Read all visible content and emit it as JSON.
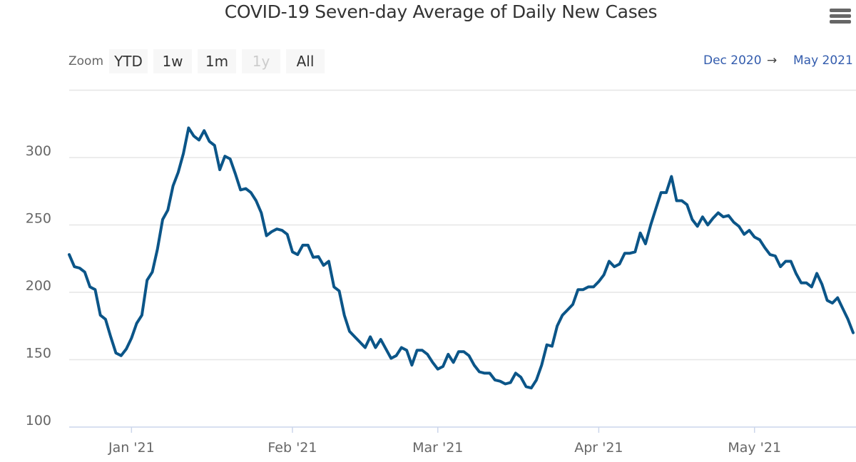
{
  "header": {
    "title": "COVID-19 Seven-day Average of Daily New Cases",
    "menu_icon": "hamburger-menu-icon"
  },
  "range_selector": {
    "zoom_label": "Zoom",
    "buttons": [
      {
        "label": "YTD",
        "enabled": true
      },
      {
        "label": "1w",
        "enabled": true
      },
      {
        "label": "1m",
        "enabled": true
      },
      {
        "label": "1y",
        "enabled": false
      },
      {
        "label": "All",
        "enabled": true
      }
    ],
    "from": "Dec 2020",
    "arrow": "→",
    "to": "May 2021"
  },
  "chart_data": {
    "type": "line",
    "title": "COVID-19 Seven-day Average of Daily New Cases",
    "xlabel": "",
    "ylabel": "",
    "x_start": "2020-12-20",
    "x_interval": "day",
    "xlim": [
      "2020-12-20",
      "2021-05-20"
    ],
    "ylim": [
      100,
      350
    ],
    "y_ticks": [
      100,
      150,
      200,
      250,
      300
    ],
    "x_ticks": [
      {
        "date": "2021-01-01",
        "label": "Jan '21"
      },
      {
        "date": "2021-02-01",
        "label": "Feb '21"
      },
      {
        "date": "2021-03-01",
        "label": "Mar '21"
      },
      {
        "date": "2021-04-01",
        "label": "Apr '21"
      },
      {
        "date": "2021-05-01",
        "label": "May '21"
      }
    ],
    "grid": true,
    "line_color": "#0b5588",
    "values": [
      228,
      219,
      218,
      215,
      204,
      202,
      183,
      180,
      167,
      155,
      153,
      158,
      166,
      177,
      183,
      209,
      215,
      232,
      254,
      261,
      279,
      289,
      303,
      322,
      316,
      313,
      320,
      312,
      309,
      291,
      301,
      299,
      288,
      276,
      277,
      274,
      268,
      259,
      242,
      245,
      247,
      246,
      243,
      230,
      228,
      235,
      235,
      226,
      226.5,
      220,
      223,
      204,
      201,
      183,
      171,
      167,
      163,
      159,
      167,
      159,
      165,
      158,
      151,
      153,
      159,
      157,
      146,
      157,
      157,
      154,
      148,
      143,
      145,
      154,
      148,
      156,
      156,
      153,
      146,
      141,
      140,
      140,
      135,
      134,
      132,
      133,
      140,
      137,
      130,
      129,
      135,
      146,
      161,
      160,
      175,
      183,
      187,
      191,
      202,
      202,
      204,
      204,
      208,
      213,
      223,
      219,
      221,
      229,
      229,
      230,
      244,
      236,
      250,
      262,
      274,
      274,
      286,
      268,
      268,
      265,
      254,
      249,
      256,
      250,
      255,
      259,
      256,
      257,
      252,
      249,
      243,
      246,
      241,
      239,
      233,
      228,
      227,
      219,
      223,
      223,
      214,
      207,
      207,
      204,
      214,
      206,
      194,
      192,
      196,
      188,
      180,
      170
    ]
  }
}
